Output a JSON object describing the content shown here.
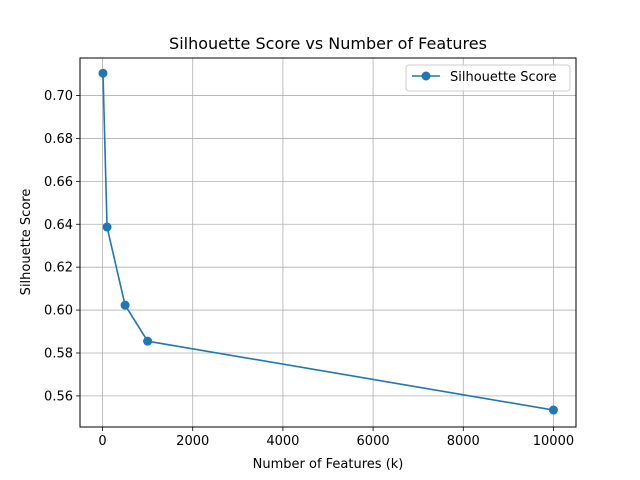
{
  "chart_data": {
    "type": "line",
    "title": "Silhouette Score vs Number of Features",
    "xlabel": "Number of Features (k)",
    "ylabel": "Silhouette Score",
    "xlim": [
      -500,
      10500
    ],
    "ylim": [
      0.5455,
      0.7175
    ],
    "xticks": [
      0,
      2000,
      4000,
      6000,
      8000,
      10000
    ],
    "xtick_labels": [
      "0",
      "2000",
      "4000",
      "6000",
      "8000",
      "10000"
    ],
    "yticks": [
      0.56,
      0.58,
      0.6,
      0.62,
      0.64,
      0.66,
      0.68,
      0.7
    ],
    "ytick_labels": [
      "0.56",
      "0.58",
      "0.60",
      "0.62",
      "0.64",
      "0.66",
      "0.68",
      "0.70"
    ],
    "grid": true,
    "legend_position": "top-right",
    "series": [
      {
        "name": "Silhouette Score",
        "color": "#1f77b4",
        "marker": "circle",
        "x": [
          10,
          100,
          500,
          1000,
          10000
        ],
        "y": [
          0.7104,
          0.6387,
          0.6023,
          0.5855,
          0.5534
        ]
      }
    ]
  }
}
